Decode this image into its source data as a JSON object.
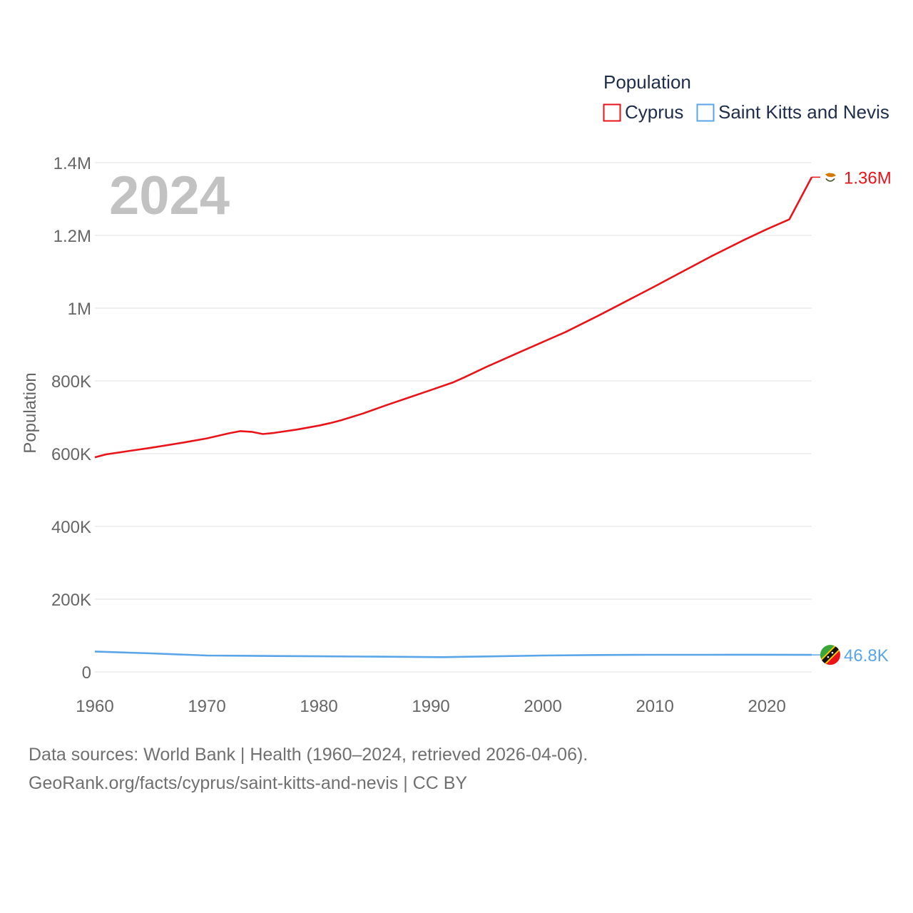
{
  "chart_data": {
    "type": "line",
    "ylabel": "Population",
    "legend_title": "Population",
    "current_year": "2024",
    "x_range": [
      1960,
      2024
    ],
    "ylim": [
      0,
      1400000
    ],
    "x_ticks": [
      {
        "value": 1960,
        "label": "1960"
      },
      {
        "value": 1970,
        "label": "1970"
      },
      {
        "value": 1980,
        "label": "1980"
      },
      {
        "value": 1990,
        "label": "1990"
      },
      {
        "value": 2000,
        "label": "2000"
      },
      {
        "value": 2010,
        "label": "2010"
      },
      {
        "value": 2020,
        "label": "2020"
      }
    ],
    "y_ticks": [
      {
        "value": 0,
        "label": "0"
      },
      {
        "value": 200000,
        "label": "200K"
      },
      {
        "value": 400000,
        "label": "400K"
      },
      {
        "value": 600000,
        "label": "600K"
      },
      {
        "value": 800000,
        "label": "800K"
      },
      {
        "value": 1000000,
        "label": "1M"
      },
      {
        "value": 1200000,
        "label": "1.2M"
      },
      {
        "value": 1400000,
        "label": "1.4M"
      }
    ],
    "series": [
      {
        "name": "Cyprus",
        "color": "#e8141a",
        "end_label": "1.36M",
        "flag": "cyprus-flag-icon",
        "points": [
          [
            1960,
            590000
          ],
          [
            1961,
            598000
          ],
          [
            1963,
            607000
          ],
          [
            1965,
            616000
          ],
          [
            1968,
            631000
          ],
          [
            1970,
            642000
          ],
          [
            1972,
            656000
          ],
          [
            1973,
            662000
          ],
          [
            1974,
            660000
          ],
          [
            1975,
            654000
          ],
          [
            1976,
            657000
          ],
          [
            1978,
            666000
          ],
          [
            1980,
            677000
          ],
          [
            1981,
            684000
          ],
          [
            1982,
            692000
          ],
          [
            1984,
            711000
          ],
          [
            1986,
            733000
          ],
          [
            1988,
            754000
          ],
          [
            1990,
            775000
          ],
          [
            1992,
            796000
          ],
          [
            1993,
            810000
          ],
          [
            1995,
            839000
          ],
          [
            1998,
            880000
          ],
          [
            2000,
            907000
          ],
          [
            2002,
            934000
          ],
          [
            2005,
            980000
          ],
          [
            2008,
            1028000
          ],
          [
            2010,
            1060000
          ],
          [
            2012,
            1093000
          ],
          [
            2015,
            1142000
          ],
          [
            2018,
            1188000
          ],
          [
            2020,
            1217000
          ],
          [
            2022,
            1244000
          ],
          [
            2024,
            1360000
          ]
        ]
      },
      {
        "name": "Saint Kitts and Nevis",
        "color": "#5aa5e8",
        "end_label": "46.8K",
        "flag": "saint-kitts-and-nevis-flag-icon",
        "points": [
          [
            1960,
            56000
          ],
          [
            1965,
            51000
          ],
          [
            1970,
            45000
          ],
          [
            1975,
            44000
          ],
          [
            1980,
            43000
          ],
          [
            1985,
            42000
          ],
          [
            1991,
            40500
          ],
          [
            1995,
            42500
          ],
          [
            2000,
            45000
          ],
          [
            2005,
            46500
          ],
          [
            2010,
            47000
          ],
          [
            2015,
            47000
          ],
          [
            2020,
            47200
          ],
          [
            2024,
            46800
          ]
        ]
      }
    ]
  },
  "footer": {
    "sources": "Data sources: World Bank | Health (1960–2024, retrieved 2026-04-06).",
    "link": "GeoRank.org/facts/cyprus/saint-kitts-and-nevis | CC BY"
  }
}
